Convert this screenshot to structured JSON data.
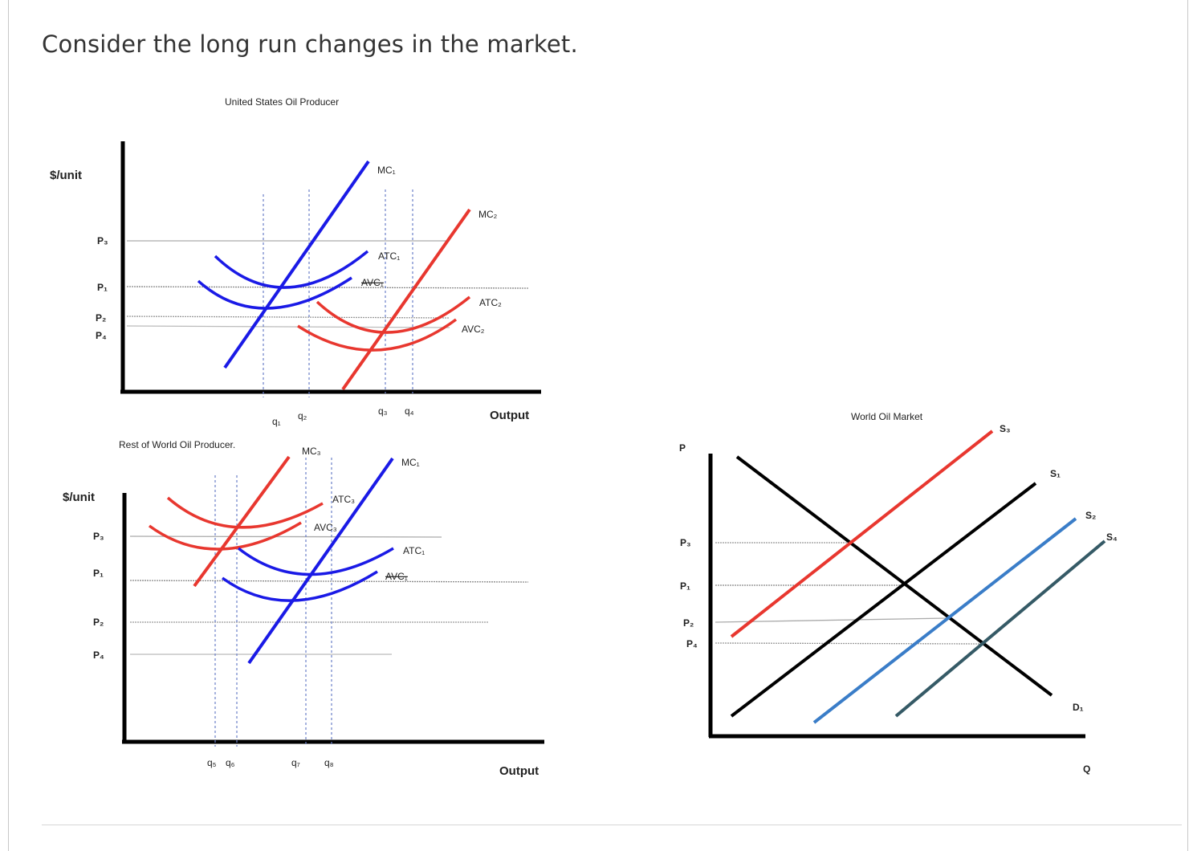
{
  "question": "Consider the long run changes in the market.",
  "colors": {
    "blue": "#1a1ae6",
    "red": "#e8372f",
    "black": "#000000",
    "lightblue": "#3a7dc8",
    "slate": "#355a66",
    "guide": "#999999"
  },
  "us_panel": {
    "title": "United States Oil Producer",
    "y_label": "$/unit",
    "x_label": "Output",
    "price_labels": [
      "P₃",
      "P₁",
      "P₂",
      "P₄"
    ],
    "quantity_labels": [
      "q₁",
      "q₂",
      "q₃",
      "q₄"
    ],
    "curves": {
      "mc1": "MC₁",
      "atc1": "ATC₁",
      "avc1": "AVC₁",
      "mc2": "MC₂",
      "atc2": "ATC₂",
      "avc2": "AVC₂"
    }
  },
  "row_panel": {
    "title": "Rest of World Oil Producer.",
    "y_label": "$/unit",
    "x_label": "Output",
    "price_labels": [
      "P₃",
      "P₁",
      "P₂",
      "P₄"
    ],
    "quantity_labels": [
      "q₅",
      "q₆",
      "q₇",
      "q₈"
    ],
    "curves": {
      "mc3": "MC₃",
      "atc3": "ATC₃",
      "avc3": "AVC₃",
      "mc1": "MC₁",
      "atc1": "ATC₁",
      "avc1": "AVC₁"
    }
  },
  "world_panel": {
    "title": "World Oil Market",
    "y_label": "P",
    "x_label": "Q",
    "price_labels": [
      "P₃",
      "P₁",
      "P₂",
      "P₄"
    ],
    "curves": {
      "s3": "S₃",
      "s1": "S₁",
      "s2": "S₂",
      "s4": "S₄",
      "d1": "D₁"
    }
  }
}
